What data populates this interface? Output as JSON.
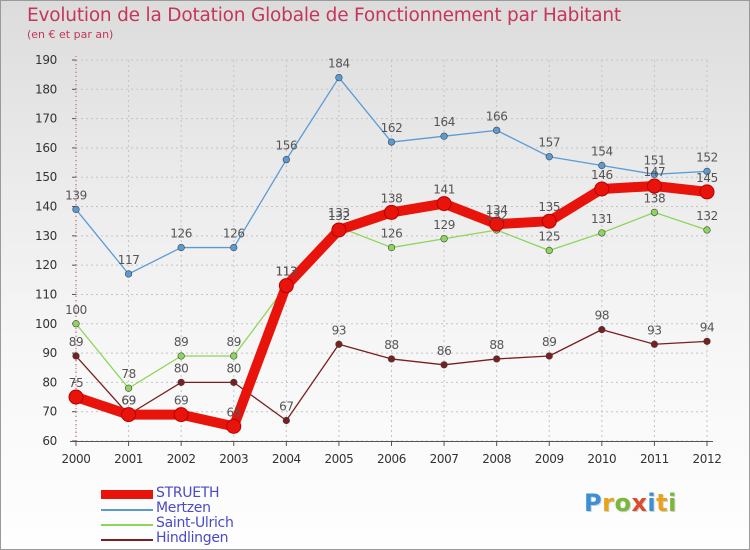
{
  "title": "Evolution de la Dotation Globale de Fonctionnement par Habitant",
  "subtitle": "(en € et par an)",
  "logo_text": "Proxiti",
  "logo_letters": [
    {
      "char": "P",
      "color": "#3a8fd6"
    },
    {
      "char": "r",
      "color": "#e8a21e"
    },
    {
      "char": "o",
      "color": "#7ab83a"
    },
    {
      "char": "x",
      "color": "#d94c2e"
    },
    {
      "char": "i",
      "color": "#3a8fd6"
    },
    {
      "char": "t",
      "color": "#e8a21e"
    },
    {
      "char": "i",
      "color": "#7ab83a"
    }
  ],
  "chart_data": {
    "type": "line",
    "title": "Evolution de la Dotation Globale de Fonctionnement par Habitant",
    "subtitle": "(en € et par an)",
    "xlabel": "",
    "ylabel": "",
    "x": [
      "2000",
      "2001",
      "2002",
      "2003",
      "2004",
      "2005",
      "2006",
      "2007",
      "2008",
      "2009",
      "2010",
      "2011",
      "2012"
    ],
    "ylim": [
      60,
      190
    ],
    "yticks": [
      60,
      70,
      80,
      90,
      100,
      110,
      120,
      130,
      140,
      150,
      160,
      170,
      180,
      190
    ],
    "grid": true,
    "legend_position": "bottom-left",
    "series": [
      {
        "name": "STRUETH",
        "color": "#e8140c",
        "style": "thick",
        "values": [
          75,
          69,
          69,
          65,
          113,
          132,
          138,
          141,
          134,
          135,
          146,
          147,
          145
        ],
        "labels": [
          "75",
          "69",
          "69",
          "65",
          "113",
          "132",
          "138",
          "141",
          "134",
          "135",
          "146",
          "147",
          "145"
        ]
      },
      {
        "name": "Mertzen",
        "color": "#5b9bd5",
        "style": "thin",
        "values": [
          139,
          117,
          126,
          126,
          156,
          184,
          162,
          164,
          166,
          157,
          154,
          151,
          152
        ],
        "labels": [
          "139",
          "117",
          "126",
          "126",
          "156",
          "184",
          "162",
          "164",
          "166",
          "157",
          "154",
          "151",
          "152"
        ]
      },
      {
        "name": "Saint-Ulrich",
        "color": "#8dd65a",
        "style": "thin",
        "values": [
          100,
          78,
          89,
          89,
          113,
          133,
          126,
          129,
          132,
          125,
          131,
          138,
          132
        ],
        "labels": [
          "100",
          "78",
          "89",
          "89",
          "113",
          "133",
          "126",
          "129",
          "132",
          "125",
          "131",
          "138",
          "132"
        ]
      },
      {
        "name": "Hindlingen",
        "color": "#7a1f1f",
        "style": "thin",
        "values": [
          89,
          69,
          80,
          80,
          67,
          93,
          88,
          86,
          88,
          89,
          98,
          93,
          94
        ],
        "labels": [
          "89",
          "69",
          "80",
          "80",
          "67",
          "93",
          "88",
          "86",
          "88",
          "89",
          "98",
          "93",
          "94"
        ]
      }
    ]
  }
}
